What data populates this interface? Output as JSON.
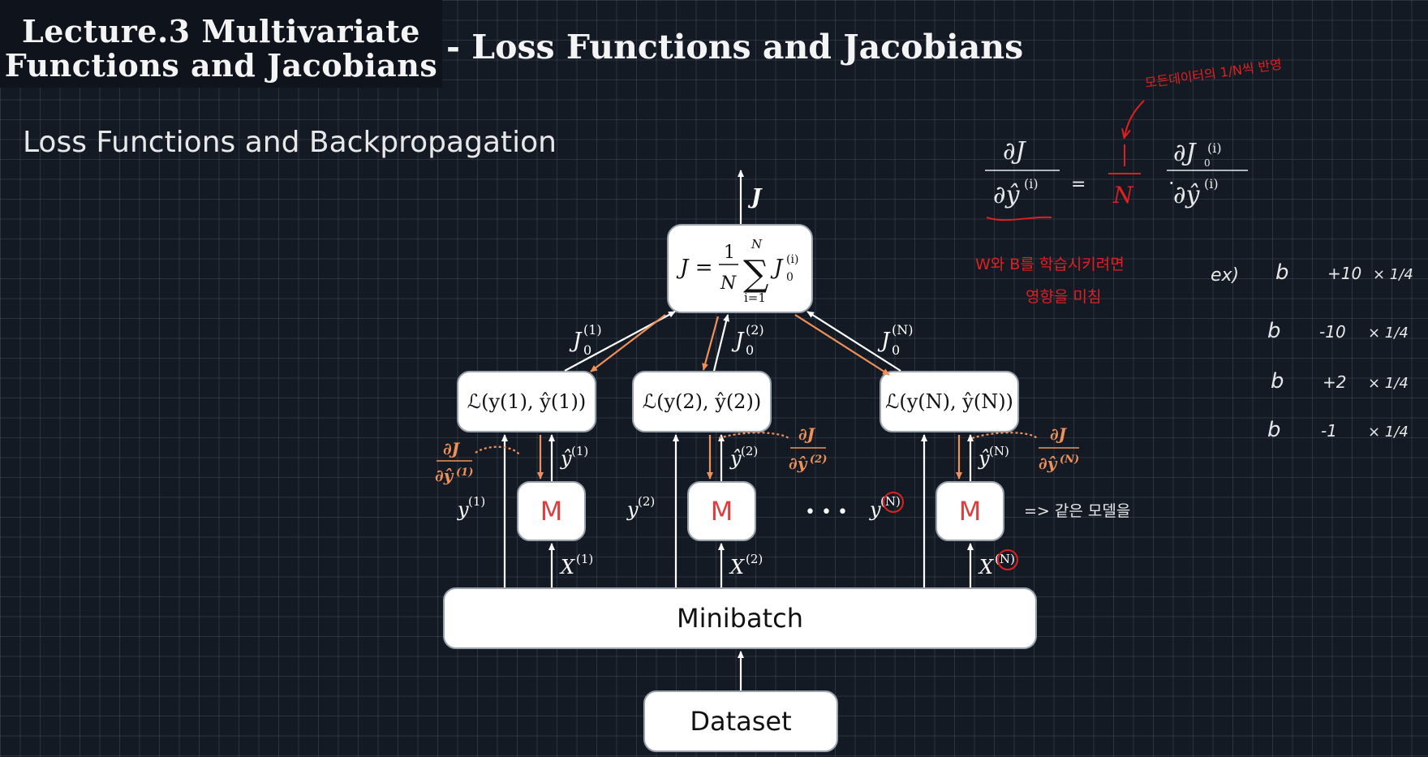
{
  "title": {
    "line1": "Lecture.3 Multivariate",
    "line2": "Functions and Jacobians",
    "subtitle": "- Loss Functions and Jacobians"
  },
  "section_title": "Loss Functions and Backpropagation",
  "diagram": {
    "output_label": "J",
    "sum_box": {
      "lhs": "J =",
      "frac_num": "1",
      "frac_den": "N",
      "sigma": "∑",
      "sigma_top": "N",
      "sigma_bottom": "i=1",
      "term": "J",
      "term_sup": "(i)",
      "term_sub": "0"
    },
    "loss_boxes": [
      {
        "label": "ℒ(y(1), ŷ(1))",
        "index": "(1)"
      },
      {
        "label": "ℒ(y(2), ŷ(2))",
        "index": "(2)"
      },
      {
        "label": "ℒ(y(N), ŷ(N))",
        "index": "(N)"
      }
    ],
    "j0_labels": [
      "(1)",
      "(2)",
      "(N)"
    ],
    "model_label": "M",
    "y_labels": [
      "(1)",
      "(2)",
      "(N)"
    ],
    "yhat_labels": [
      "(1)",
      "(2)",
      "(N)"
    ],
    "x_labels": [
      "(1)",
      "(2)",
      "(N)"
    ],
    "grad_num": "∂J",
    "grad_dens": [
      "(1)",
      "(2)",
      "(N)"
    ],
    "ellipsis": "• • •",
    "minibatch": "Minibatch",
    "dataset": "Dataset"
  },
  "annotations": {
    "korean_top": "모든데이터의 1/N씩 반영",
    "korean_mid1": "W와 B를 학습시키려면",
    "korean_mid2": "영향을 미침",
    "korean_same_model": "=> 같은 모델을",
    "ex_label": "ex)",
    "example_rows": [
      {
        "var": "b",
        "val": "+10",
        "mul": "× 1/4"
      },
      {
        "var": "b",
        "val": "-10",
        "mul": "× 1/4"
      },
      {
        "var": "b",
        "val": "+2",
        "mul": "× 1/4"
      },
      {
        "var": "b",
        "val": "-1",
        "mul": "× 1/4"
      }
    ]
  },
  "colors": {
    "background": "#141a24",
    "orange_arrow": "#f0915a",
    "red_ink": "#e02020",
    "model_text": "#e23b3b"
  }
}
